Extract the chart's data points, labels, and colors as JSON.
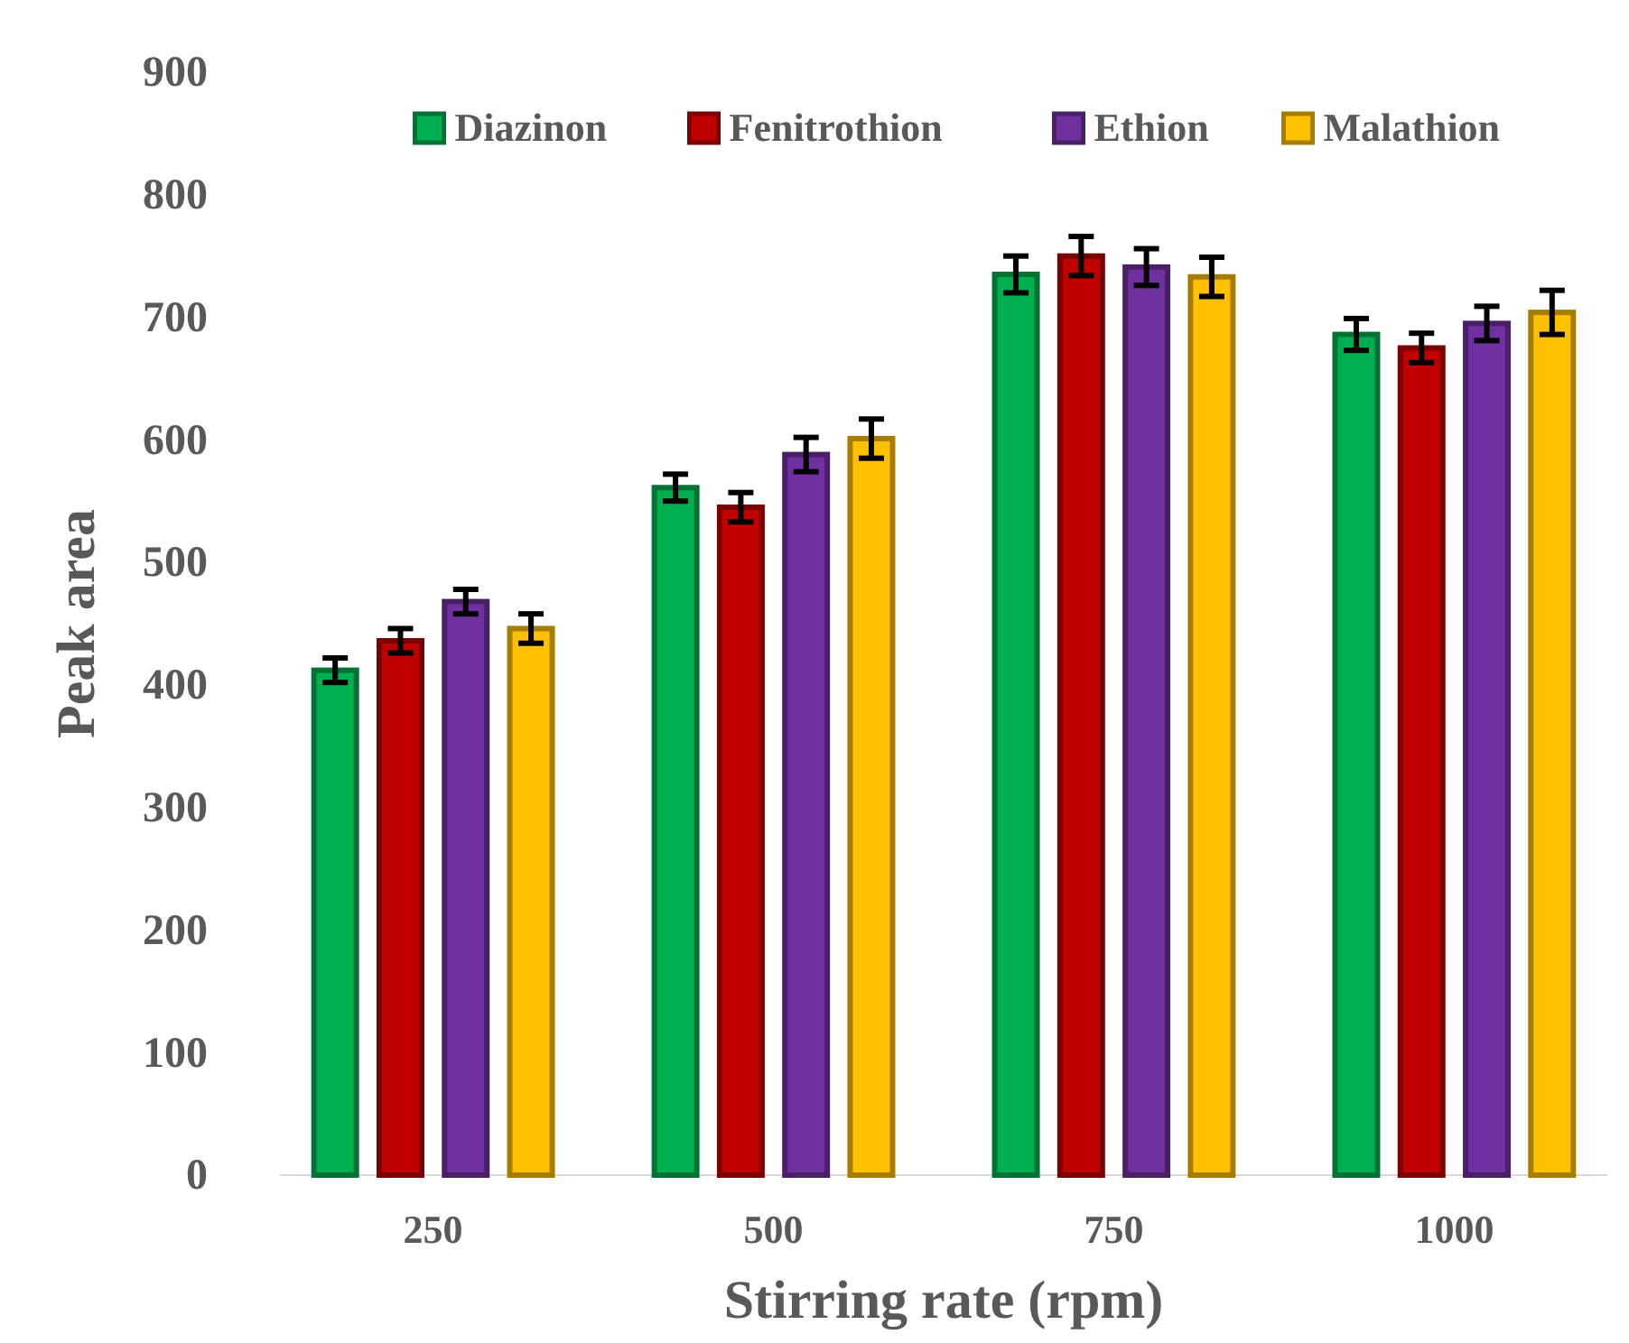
{
  "chart_data": {
    "type": "bar",
    "xlabel": "Stirring rate (rpm)",
    "ylabel": "Peak area",
    "categories": [
      "250",
      "500",
      "750",
      "1000"
    ],
    "series": [
      {
        "name": "Diazinon",
        "color": "#00b050",
        "values": [
          412,
          561,
          735,
          686
        ],
        "errors": [
          10,
          11,
          15,
          13
        ]
      },
      {
        "name": "Fenitrothion",
        "color": "#c00000",
        "values": [
          436,
          545,
          750,
          675
        ],
        "errors": [
          10,
          12,
          16,
          12
        ]
      },
      {
        "name": "Ethion",
        "color": "#7030a0",
        "values": [
          468,
          588,
          741,
          695
        ],
        "errors": [
          10,
          14,
          15,
          14
        ]
      },
      {
        "name": "Malathion",
        "color": "#ffc000",
        "values": [
          446,
          601,
          733,
          704
        ],
        "errors": [
          12,
          16,
          16,
          18
        ]
      }
    ],
    "ylim": [
      0,
      900
    ],
    "yticks": [
      0,
      100,
      200,
      300,
      400,
      500,
      600,
      700,
      800,
      900
    ],
    "grid": false,
    "legend": "top"
  }
}
